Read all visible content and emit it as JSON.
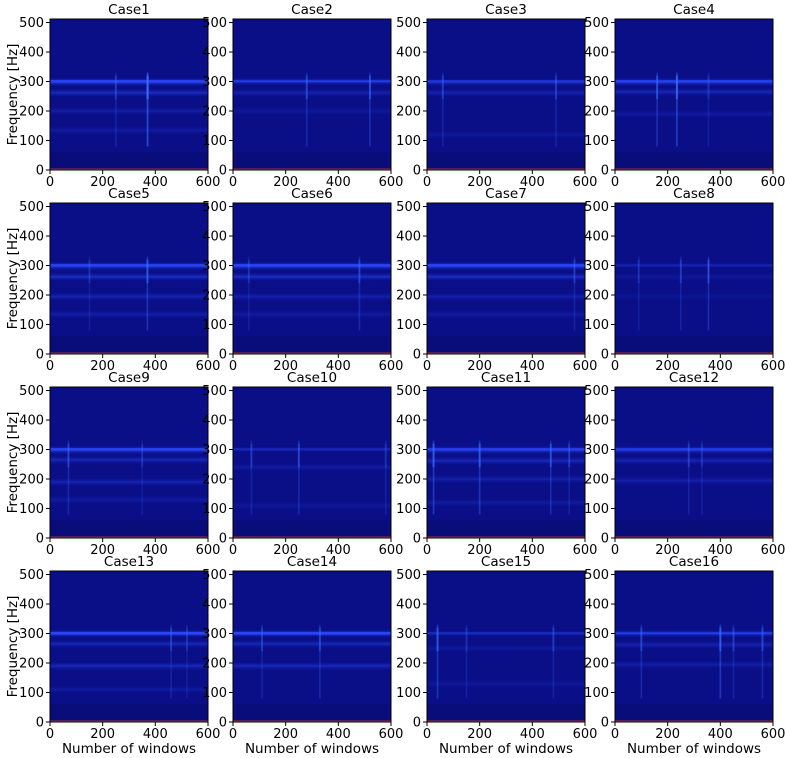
{
  "chart_data": {
    "type": "heatmap",
    "layout": {
      "rows": 4,
      "cols": 4
    },
    "xlabel": "Number of windows",
    "ylabel": "Frequency [Hz]",
    "xlim": [
      0,
      600
    ],
    "ylim": [
      0,
      512
    ],
    "xticks": [
      0,
      200,
      400,
      600
    ],
    "yticks": [
      0,
      100,
      200,
      300,
      400,
      500
    ],
    "colors": {
      "background": "#0a0f88",
      "dark_band": "#070b72",
      "band": "#1a2fe0",
      "band_bright": "#2c4cff",
      "streak": "#3a6cff",
      "baseline": "#c0392b"
    },
    "panels": [
      {
        "title": "Case1",
        "main_band": [
          285,
          312
        ],
        "band_strength": 0.8,
        "secondary_bands": [
          [
            262,
            0.45
          ],
          [
            200,
            0.25
          ],
          [
            135,
            0.2
          ]
        ],
        "streaks": [
          [
            370,
            0.9
          ],
          [
            250,
            0.4
          ],
          [
            372,
            0.5
          ]
        ]
      },
      {
        "title": "Case2",
        "main_band": [
          288,
          312
        ],
        "band_strength": 0.55,
        "secondary_bands": [
          [
            262,
            0.3
          ],
          [
            200,
            0.15
          ]
        ],
        "streaks": [
          [
            280,
            0.5
          ],
          [
            520,
            0.6
          ]
        ]
      },
      {
        "title": "Case3",
        "main_band": [
          285,
          310
        ],
        "band_strength": 0.5,
        "secondary_bands": [
          [
            262,
            0.3
          ],
          [
            120,
            0.15
          ]
        ],
        "streaks": [
          [
            60,
            0.4
          ],
          [
            490,
            0.4
          ]
        ]
      },
      {
        "title": "Case4",
        "main_band": [
          285,
          312
        ],
        "band_strength": 0.7,
        "secondary_bands": [
          [
            265,
            0.4
          ],
          [
            190,
            0.2
          ]
        ],
        "streaks": [
          [
            160,
            0.6
          ],
          [
            235,
            0.9
          ],
          [
            355,
            0.3
          ]
        ]
      },
      {
        "title": "Case5",
        "main_band": [
          285,
          312
        ],
        "band_strength": 0.75,
        "secondary_bands": [
          [
            262,
            0.5
          ],
          [
            195,
            0.35
          ],
          [
            135,
            0.25
          ]
        ],
        "streaks": [
          [
            370,
            0.7
          ],
          [
            150,
            0.3
          ]
        ]
      },
      {
        "title": "Case6",
        "main_band": [
          285,
          312
        ],
        "band_strength": 0.8,
        "secondary_bands": [
          [
            262,
            0.5
          ],
          [
            195,
            0.3
          ],
          [
            135,
            0.2
          ]
        ],
        "streaks": [
          [
            480,
            0.5
          ],
          [
            60,
            0.3
          ]
        ]
      },
      {
        "title": "Case7",
        "main_band": [
          285,
          312
        ],
        "band_strength": 0.8,
        "secondary_bands": [
          [
            262,
            0.5
          ],
          [
            195,
            0.3
          ],
          [
            135,
            0.2
          ]
        ],
        "streaks": [
          [
            560,
            0.4
          ]
        ]
      },
      {
        "title": "Case8",
        "main_band": [
          290,
          310
        ],
        "band_strength": 0.2,
        "secondary_bands": [
          [
            262,
            0.15
          ],
          [
            195,
            0.1
          ]
        ],
        "streaks": [
          [
            250,
            0.4
          ],
          [
            355,
            0.6
          ],
          [
            90,
            0.3
          ]
        ]
      },
      {
        "title": "Case9",
        "main_band": [
          285,
          312
        ],
        "band_strength": 0.75,
        "secondary_bands": [
          [
            265,
            0.4
          ],
          [
            190,
            0.35
          ],
          [
            130,
            0.2
          ]
        ],
        "streaks": [
          [
            70,
            0.5
          ],
          [
            350,
            0.3
          ]
        ]
      },
      {
        "title": "Case10",
        "main_band": [
          290,
          310
        ],
        "band_strength": 0.25,
        "secondary_bands": [
          [
            240,
            0.2
          ],
          [
            110,
            0.15
          ]
        ],
        "streaks": [
          [
            70,
            0.4
          ],
          [
            250,
            0.5
          ],
          [
            580,
            0.3
          ]
        ]
      },
      {
        "title": "Case11",
        "main_band": [
          285,
          312
        ],
        "band_strength": 0.65,
        "secondary_bands": [
          [
            262,
            0.4
          ],
          [
            200,
            0.3
          ],
          [
            120,
            0.2
          ]
        ],
        "streaks": [
          [
            25,
            0.8
          ],
          [
            200,
            0.7
          ],
          [
            470,
            0.6
          ],
          [
            540,
            0.4
          ]
        ]
      },
      {
        "title": "Case12",
        "main_band": [
          285,
          312
        ],
        "band_strength": 0.6,
        "secondary_bands": [
          [
            262,
            0.35
          ],
          [
            195,
            0.3
          ]
        ],
        "streaks": [
          [
            280,
            0.4
          ],
          [
            330,
            0.3
          ]
        ]
      },
      {
        "title": "Case13",
        "main_band": [
          288,
          312
        ],
        "band_strength": 0.85,
        "secondary_bands": [
          [
            265,
            0.4
          ],
          [
            190,
            0.4
          ],
          [
            110,
            0.2
          ]
        ],
        "streaks": [
          [
            460,
            0.4
          ],
          [
            520,
            0.3
          ]
        ]
      },
      {
        "title": "Case14",
        "main_band": [
          288,
          312
        ],
        "band_strength": 0.85,
        "secondary_bands": [
          [
            265,
            0.4
          ],
          [
            190,
            0.4
          ]
        ],
        "streaks": [
          [
            110,
            0.4
          ],
          [
            330,
            0.5
          ]
        ]
      },
      {
        "title": "Case15",
        "main_band": [
          290,
          310
        ],
        "band_strength": 0.3,
        "secondary_bands": [
          [
            250,
            0.15
          ],
          [
            130,
            0.15
          ]
        ],
        "streaks": [
          [
            40,
            0.7
          ],
          [
            150,
            0.3
          ],
          [
            480,
            0.4
          ]
        ]
      },
      {
        "title": "Case16",
        "main_band": [
          288,
          312
        ],
        "band_strength": 0.55,
        "secondary_bands": [
          [
            262,
            0.3
          ],
          [
            195,
            0.25
          ]
        ],
        "streaks": [
          [
            100,
            0.5
          ],
          [
            400,
            0.8
          ],
          [
            450,
            0.4
          ],
          [
            560,
            0.5
          ]
        ]
      }
    ]
  }
}
